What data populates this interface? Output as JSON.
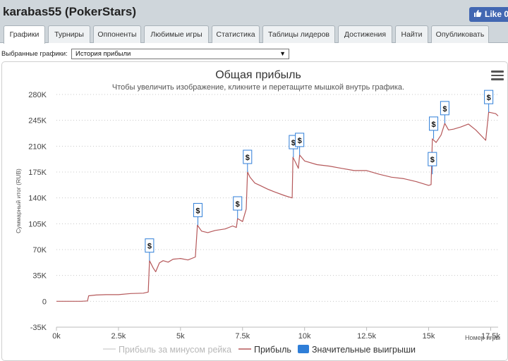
{
  "header": {
    "player_title": "karabas55 (PokerStars)",
    "like_label": "Like 0"
  },
  "tabs": [
    {
      "label": "Графики",
      "active": true
    },
    {
      "label": "Турниры"
    },
    {
      "label": "Оппоненты"
    },
    {
      "label": "Любимые игры"
    },
    {
      "label": "Статистика"
    },
    {
      "label": "Таблицы лидеров"
    },
    {
      "label": "Достижения"
    },
    {
      "label": "Найти"
    },
    {
      "label": "Опубликовать"
    }
  ],
  "selector": {
    "label": "Выбранные графики:",
    "value": "История прибыли"
  },
  "colors": {
    "profit_line": "#b5585a",
    "rake_line": "#d6d6d6",
    "big_win": "#2f7ed8"
  },
  "chart_data": {
    "type": "line",
    "title": "Общая прибыль",
    "subtitle": "Чтобы увеличить изображение, кликните и перетащите мышкой внутрь графика.",
    "xlabel": "Номер игры",
    "ylabel": "Суммарный итог (RUB)",
    "xlim": [
      0,
      17800
    ],
    "ylim": [
      -35000,
      280000
    ],
    "x_ticks": [
      0,
      2500,
      5000,
      7500,
      10000,
      12500,
      15000,
      17500
    ],
    "x_tick_labels": [
      "0k",
      "2.5k",
      "5k",
      "7.5k",
      "10k",
      "12.5k",
      "15k",
      "17.5k"
    ],
    "y_ticks": [
      -35000,
      0,
      35000,
      70000,
      105000,
      140000,
      175000,
      210000,
      245000,
      280000
    ],
    "y_tick_labels": [
      "-35K",
      "0",
      "35K",
      "70K",
      "105K",
      "140K",
      "175K",
      "210K",
      "245K",
      "280K"
    ],
    "grid": "horizontal dotted",
    "legend_position": "bottom",
    "legend": [
      {
        "label": "Прибыль за минусом рейка",
        "symbol": "line",
        "color": "#d6d6d6"
      },
      {
        "label": "Прибыль",
        "symbol": "line",
        "color": "#b5585a"
      },
      {
        "label": "Значительные выигрыши",
        "symbol": "box",
        "color": "#2f7ed8"
      }
    ],
    "series": [
      {
        "name": "Прибыль",
        "points": [
          [
            0,
            0
          ],
          [
            500,
            0
          ],
          [
            1000,
            0
          ],
          [
            1250,
            500
          ],
          [
            1300,
            7500
          ],
          [
            1600,
            8500
          ],
          [
            2000,
            9000
          ],
          [
            2500,
            9000
          ],
          [
            3000,
            10500
          ],
          [
            3500,
            11000
          ],
          [
            3700,
            12500
          ],
          [
            3750,
            55000
          ],
          [
            3900,
            45000
          ],
          [
            4000,
            40000
          ],
          [
            4150,
            52000
          ],
          [
            4300,
            55000
          ],
          [
            4500,
            53000
          ],
          [
            4700,
            57000
          ],
          [
            5000,
            58000
          ],
          [
            5300,
            56000
          ],
          [
            5600,
            60000
          ],
          [
            5680,
            103000
          ],
          [
            5850,
            95000
          ],
          [
            6100,
            93000
          ],
          [
            6400,
            96000
          ],
          [
            6800,
            98000
          ],
          [
            7100,
            102000
          ],
          [
            7250,
            100000
          ],
          [
            7300,
            112000
          ],
          [
            7500,
            108000
          ],
          [
            7650,
            125000
          ],
          [
            7700,
            175000
          ],
          [
            7800,
            168000
          ],
          [
            8000,
            160000
          ],
          [
            8200,
            157000
          ],
          [
            8500,
            152000
          ],
          [
            8800,
            148000
          ],
          [
            9200,
            143000
          ],
          [
            9500,
            140000
          ],
          [
            9530,
            195000
          ],
          [
            9650,
            187000
          ],
          [
            9750,
            180000
          ],
          [
            9800,
            198000
          ],
          [
            10000,
            190000
          ],
          [
            10500,
            185000
          ],
          [
            11000,
            183000
          ],
          [
            11500,
            180000
          ],
          [
            12000,
            177000
          ],
          [
            12500,
            177000
          ],
          [
            13000,
            172000
          ],
          [
            13500,
            168000
          ],
          [
            14000,
            166000
          ],
          [
            14500,
            162000
          ],
          [
            15000,
            157000
          ],
          [
            15100,
            158000
          ],
          [
            15150,
            220000
          ],
          [
            15300,
            215000
          ],
          [
            15500,
            225000
          ],
          [
            15650,
            241000
          ],
          [
            15800,
            232000
          ],
          [
            16000,
            233000
          ],
          [
            16300,
            236000
          ],
          [
            16600,
            240000
          ],
          [
            16900,
            232000
          ],
          [
            17300,
            218000
          ],
          [
            17420,
            256000
          ],
          [
            17700,
            254000
          ],
          [
            17800,
            251000
          ]
        ]
      }
    ],
    "big_wins": [
      {
        "x": 3750,
        "y": 55000,
        "label": "$"
      },
      {
        "x": 5700,
        "y": 103000,
        "label": "$"
      },
      {
        "x": 7300,
        "y": 112000,
        "label": "$"
      },
      {
        "x": 7700,
        "y": 175000,
        "label": "$"
      },
      {
        "x": 9550,
        "y": 195000,
        "label": "$"
      },
      {
        "x": 9800,
        "y": 198000,
        "label": "$"
      },
      {
        "x": 15150,
        "y": 172000,
        "label": "$"
      },
      {
        "x": 15200,
        "y": 220000,
        "label": "$"
      },
      {
        "x": 15650,
        "y": 241000,
        "label": "$"
      },
      {
        "x": 17420,
        "y": 256000,
        "label": "$"
      }
    ]
  }
}
